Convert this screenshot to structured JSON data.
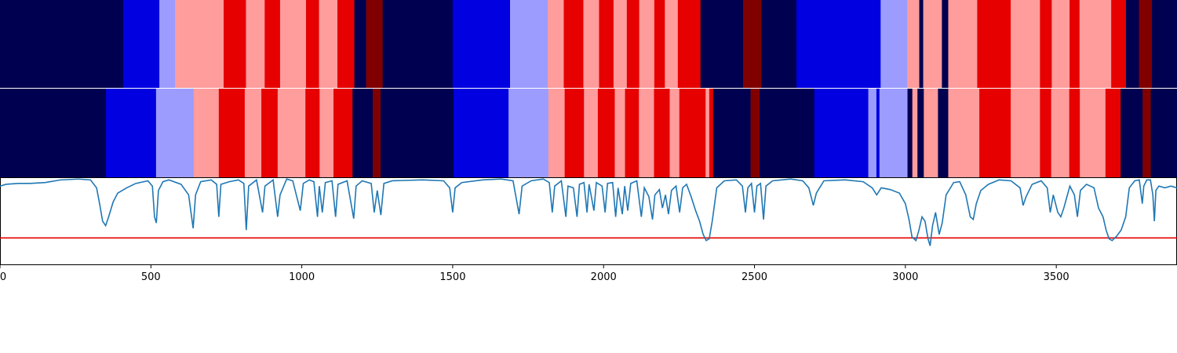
{
  "chart_data": {
    "type": "heatmap",
    "xlim": [
      0,
      3900
    ],
    "x_ticks": [
      0,
      500,
      1000,
      1500,
      2000,
      2500,
      3000,
      3500
    ],
    "x_tick_labels": [
      "0",
      "500",
      "1000",
      "1500",
      "2000",
      "2500",
      "3000",
      "3500"
    ],
    "palette": {
      "navy": "#000050",
      "blue": "#0000e0",
      "light_blue": "#9c9cff",
      "light_red": "#ff9c9c",
      "red": "#e60000",
      "dark_red": "#800000"
    },
    "strips": [
      {
        "segments": [
          [
            0,
            408,
            "navy"
          ],
          [
            408,
            528,
            "blue"
          ],
          [
            528,
            580,
            "light_blue"
          ],
          [
            580,
            741,
            "light_red"
          ],
          [
            741,
            815,
            "red"
          ],
          [
            815,
            877,
            "light_red"
          ],
          [
            877,
            928,
            "red"
          ],
          [
            928,
            1014,
            "light_red"
          ],
          [
            1014,
            1057,
            "red"
          ],
          [
            1057,
            1118,
            "light_red"
          ],
          [
            1118,
            1174,
            "red"
          ],
          [
            1174,
            1213,
            "navy"
          ],
          [
            1213,
            1268,
            "dark_red"
          ],
          [
            1268,
            1500,
            "navy"
          ],
          [
            1500,
            1690,
            "blue"
          ],
          [
            1690,
            1815,
            "light_blue"
          ],
          [
            1815,
            1868,
            "light_red"
          ],
          [
            1868,
            1933,
            "red"
          ],
          [
            1933,
            1985,
            "light_red"
          ],
          [
            1985,
            2033,
            "red"
          ],
          [
            2033,
            2077,
            "light_red"
          ],
          [
            2077,
            2118,
            "red"
          ],
          [
            2118,
            2168,
            "light_red"
          ],
          [
            2168,
            2203,
            "red"
          ],
          [
            2203,
            2246,
            "light_red"
          ],
          [
            2246,
            2321,
            "red"
          ],
          [
            2321,
            2462,
            "navy"
          ],
          [
            2462,
            2523,
            "dark_red"
          ],
          [
            2523,
            2639,
            "navy"
          ],
          [
            2639,
            2918,
            "blue"
          ],
          [
            2918,
            3006,
            "light_blue"
          ],
          [
            3006,
            3046,
            "light_red"
          ],
          [
            3046,
            3059,
            "navy"
          ],
          [
            3059,
            3121,
            "light_red"
          ],
          [
            3121,
            3142,
            "navy"
          ],
          [
            3142,
            3238,
            "light_red"
          ],
          [
            3238,
            3349,
            "red"
          ],
          [
            3349,
            3446,
            "light_red"
          ],
          [
            3446,
            3485,
            "red"
          ],
          [
            3485,
            3544,
            "light_red"
          ],
          [
            3544,
            3577,
            "red"
          ],
          [
            3577,
            3682,
            "light_red"
          ],
          [
            3682,
            3731,
            "red"
          ],
          [
            3731,
            3774,
            "navy"
          ],
          [
            3774,
            3817,
            "dark_red"
          ],
          [
            3817,
            3900,
            "navy"
          ]
        ]
      },
      {
        "segments": [
          [
            0,
            351,
            "navy"
          ],
          [
            351,
            517,
            "blue"
          ],
          [
            517,
            642,
            "light_blue"
          ],
          [
            642,
            725,
            "light_red"
          ],
          [
            725,
            811,
            "red"
          ],
          [
            811,
            866,
            "light_red"
          ],
          [
            866,
            920,
            "red"
          ],
          [
            920,
            1012,
            "light_red"
          ],
          [
            1012,
            1059,
            "red"
          ],
          [
            1059,
            1105,
            "light_light_red_fix"
          ],
          [
            1105,
            1168,
            "red"
          ],
          [
            1168,
            1235,
            "navy"
          ],
          [
            1235,
            1261,
            "dark_red"
          ],
          [
            1261,
            1503,
            "navy"
          ],
          [
            1503,
            1685,
            "blue"
          ],
          [
            1685,
            1817,
            "light_blue"
          ],
          [
            1817,
            1871,
            "light_red"
          ],
          [
            1871,
            1935,
            "red"
          ],
          [
            1935,
            1981,
            "light_red"
          ],
          [
            1981,
            2037,
            "red"
          ],
          [
            2037,
            2071,
            "light_red"
          ],
          [
            2071,
            2117,
            "red"
          ],
          [
            2117,
            2167,
            "light_red"
          ],
          [
            2167,
            2219,
            "red"
          ],
          [
            2219,
            2251,
            "light_red"
          ],
          [
            2251,
            2338,
            "red"
          ],
          [
            2338,
            2350,
            "light_red"
          ],
          [
            2350,
            2363,
            "red"
          ],
          [
            2363,
            2487,
            "navy"
          ],
          [
            2487,
            2517,
            "dark_red"
          ],
          [
            2517,
            2698,
            "navy"
          ],
          [
            2698,
            2877,
            "blue"
          ],
          [
            2877,
            2904,
            "light_blue"
          ],
          [
            2904,
            2914,
            "blue"
          ],
          [
            2914,
            3007,
            "light_blue"
          ],
          [
            3007,
            3023,
            "navy"
          ],
          [
            3023,
            3040,
            "light_red"
          ],
          [
            3040,
            3061,
            "navy"
          ],
          [
            3061,
            3108,
            "light_red"
          ],
          [
            3108,
            3142,
            "navy"
          ],
          [
            3142,
            3245,
            "light_red"
          ],
          [
            3245,
            3349,
            "red"
          ],
          [
            3349,
            3446,
            "light_red"
          ],
          [
            3446,
            3483,
            "red"
          ],
          [
            3483,
            3543,
            "light_red"
          ],
          [
            3543,
            3578,
            "red"
          ],
          [
            3578,
            3663,
            "light_red"
          ],
          [
            3663,
            3713,
            "red"
          ],
          [
            3713,
            3786,
            "navy"
          ],
          [
            3786,
            3813,
            "dark_red"
          ],
          [
            3813,
            3900,
            "navy"
          ]
        ]
      }
    ],
    "line": {
      "color": "#1f77b4",
      "ylim": [
        0,
        1
      ],
      "points": [
        [
          0,
          0.9
        ],
        [
          20,
          0.92
        ],
        [
          60,
          0.93
        ],
        [
          100,
          0.93
        ],
        [
          150,
          0.94
        ],
        [
          200,
          0.97
        ],
        [
          260,
          0.98
        ],
        [
          300,
          0.97
        ],
        [
          320,
          0.88
        ],
        [
          330,
          0.7
        ],
        [
          340,
          0.5
        ],
        [
          350,
          0.45
        ],
        [
          360,
          0.55
        ],
        [
          375,
          0.72
        ],
        [
          390,
          0.82
        ],
        [
          420,
          0.88
        ],
        [
          450,
          0.93
        ],
        [
          490,
          0.96
        ],
        [
          505,
          0.9
        ],
        [
          512,
          0.55
        ],
        [
          518,
          0.48
        ],
        [
          525,
          0.85
        ],
        [
          540,
          0.95
        ],
        [
          560,
          0.97
        ],
        [
          600,
          0.92
        ],
        [
          625,
          0.8
        ],
        [
          640,
          0.42
        ],
        [
          648,
          0.8
        ],
        [
          665,
          0.95
        ],
        [
          700,
          0.97
        ],
        [
          718,
          0.92
        ],
        [
          725,
          0.55
        ],
        [
          732,
          0.92
        ],
        [
          760,
          0.95
        ],
        [
          790,
          0.97
        ],
        [
          808,
          0.93
        ],
        [
          816,
          0.4
        ],
        [
          824,
          0.9
        ],
        [
          850,
          0.97
        ],
        [
          870,
          0.6
        ],
        [
          878,
          0.9
        ],
        [
          905,
          0.97
        ],
        [
          920,
          0.55
        ],
        [
          928,
          0.8
        ],
        [
          950,
          0.98
        ],
        [
          970,
          0.96
        ],
        [
          995,
          0.62
        ],
        [
          1005,
          0.93
        ],
        [
          1025,
          0.97
        ],
        [
          1040,
          0.95
        ],
        [
          1052,
          0.55
        ],
        [
          1058,
          0.9
        ],
        [
          1068,
          0.6
        ],
        [
          1078,
          0.94
        ],
        [
          1100,
          0.96
        ],
        [
          1112,
          0.55
        ],
        [
          1120,
          0.92
        ],
        [
          1150,
          0.96
        ],
        [
          1172,
          0.53
        ],
        [
          1180,
          0.9
        ],
        [
          1200,
          0.96
        ],
        [
          1230,
          0.93
        ],
        [
          1240,
          0.6
        ],
        [
          1250,
          0.85
        ],
        [
          1262,
          0.57
        ],
        [
          1272,
          0.93
        ],
        [
          1300,
          0.96
        ],
        [
          1400,
          0.97
        ],
        [
          1470,
          0.96
        ],
        [
          1490,
          0.88
        ],
        [
          1500,
          0.6
        ],
        [
          1508,
          0.88
        ],
        [
          1530,
          0.94
        ],
        [
          1600,
          0.97
        ],
        [
          1660,
          0.98
        ],
        [
          1700,
          0.96
        ],
        [
          1720,
          0.58
        ],
        [
          1730,
          0.9
        ],
        [
          1760,
          0.96
        ],
        [
          1800,
          0.98
        ],
        [
          1820,
          0.94
        ],
        [
          1830,
          0.6
        ],
        [
          1838,
          0.9
        ],
        [
          1860,
          0.96
        ],
        [
          1875,
          0.55
        ],
        [
          1882,
          0.9
        ],
        [
          1900,
          0.88
        ],
        [
          1912,
          0.55
        ],
        [
          1920,
          0.92
        ],
        [
          1935,
          0.94
        ],
        [
          1945,
          0.6
        ],
        [
          1952,
          0.92
        ],
        [
          1968,
          0.62
        ],
        [
          1976,
          0.94
        ],
        [
          1995,
          0.9
        ],
        [
          2005,
          0.6
        ],
        [
          2013,
          0.93
        ],
        [
          2030,
          0.94
        ],
        [
          2040,
          0.55
        ],
        [
          2048,
          0.88
        ],
        [
          2062,
          0.58
        ],
        [
          2070,
          0.9
        ],
        [
          2080,
          0.62
        ],
        [
          2090,
          0.93
        ],
        [
          2110,
          0.96
        ],
        [
          2125,
          0.55
        ],
        [
          2135,
          0.88
        ],
        [
          2150,
          0.78
        ],
        [
          2162,
          0.52
        ],
        [
          2170,
          0.8
        ],
        [
          2185,
          0.86
        ],
        [
          2195,
          0.65
        ],
        [
          2205,
          0.8
        ],
        [
          2215,
          0.58
        ],
        [
          2225,
          0.85
        ],
        [
          2240,
          0.9
        ],
        [
          2252,
          0.6
        ],
        [
          2262,
          0.88
        ],
        [
          2275,
          0.92
        ],
        [
          2290,
          0.78
        ],
        [
          2305,
          0.62
        ],
        [
          2318,
          0.5
        ],
        [
          2330,
          0.35
        ],
        [
          2340,
          0.28
        ],
        [
          2350,
          0.3
        ],
        [
          2360,
          0.5
        ],
        [
          2375,
          0.88
        ],
        [
          2400,
          0.96
        ],
        [
          2440,
          0.97
        ],
        [
          2460,
          0.9
        ],
        [
          2470,
          0.6
        ],
        [
          2478,
          0.88
        ],
        [
          2490,
          0.93
        ],
        [
          2500,
          0.6
        ],
        [
          2508,
          0.9
        ],
        [
          2520,
          0.93
        ],
        [
          2530,
          0.52
        ],
        [
          2538,
          0.9
        ],
        [
          2560,
          0.96
        ],
        [
          2620,
          0.98
        ],
        [
          2660,
          0.96
        ],
        [
          2680,
          0.88
        ],
        [
          2695,
          0.68
        ],
        [
          2705,
          0.82
        ],
        [
          2730,
          0.96
        ],
        [
          2800,
          0.97
        ],
        [
          2860,
          0.95
        ],
        [
          2890,
          0.88
        ],
        [
          2905,
          0.8
        ],
        [
          2920,
          0.88
        ],
        [
          2950,
          0.86
        ],
        [
          2980,
          0.82
        ],
        [
          3000,
          0.7
        ],
        [
          3012,
          0.52
        ],
        [
          3022,
          0.32
        ],
        [
          3035,
          0.28
        ],
        [
          3045,
          0.4
        ],
        [
          3055,
          0.55
        ],
        [
          3065,
          0.5
        ],
        [
          3075,
          0.3
        ],
        [
          3082,
          0.22
        ],
        [
          3090,
          0.45
        ],
        [
          3100,
          0.6
        ],
        [
          3112,
          0.35
        ],
        [
          3122,
          0.48
        ],
        [
          3135,
          0.8
        ],
        [
          3160,
          0.94
        ],
        [
          3180,
          0.95
        ],
        [
          3200,
          0.8
        ],
        [
          3215,
          0.55
        ],
        [
          3225,
          0.52
        ],
        [
          3235,
          0.7
        ],
        [
          3250,
          0.85
        ],
        [
          3275,
          0.92
        ],
        [
          3310,
          0.97
        ],
        [
          3350,
          0.96
        ],
        [
          3380,
          0.88
        ],
        [
          3390,
          0.68
        ],
        [
          3400,
          0.78
        ],
        [
          3420,
          0.92
        ],
        [
          3450,
          0.96
        ],
        [
          3470,
          0.88
        ],
        [
          3480,
          0.6
        ],
        [
          3490,
          0.8
        ],
        [
          3505,
          0.6
        ],
        [
          3515,
          0.55
        ],
        [
          3525,
          0.65
        ],
        [
          3545,
          0.9
        ],
        [
          3560,
          0.8
        ],
        [
          3570,
          0.55
        ],
        [
          3580,
          0.85
        ],
        [
          3600,
          0.92
        ],
        [
          3625,
          0.88
        ],
        [
          3640,
          0.65
        ],
        [
          3655,
          0.55
        ],
        [
          3665,
          0.4
        ],
        [
          3675,
          0.3
        ],
        [
          3685,
          0.28
        ],
        [
          3700,
          0.33
        ],
        [
          3715,
          0.4
        ],
        [
          3730,
          0.55
        ],
        [
          3742,
          0.88
        ],
        [
          3760,
          0.96
        ],
        [
          3775,
          0.97
        ],
        [
          3785,
          0.7
        ],
        [
          3790,
          0.9
        ],
        [
          3800,
          0.97
        ],
        [
          3812,
          0.97
        ],
        [
          3820,
          0.8
        ],
        [
          3825,
          0.5
        ],
        [
          3830,
          0.85
        ],
        [
          3840,
          0.9
        ],
        [
          3860,
          0.88
        ],
        [
          3880,
          0.9
        ],
        [
          3900,
          0.88
        ]
      ]
    },
    "threshold": {
      "value": 0.31,
      "color": "#e60000"
    }
  }
}
